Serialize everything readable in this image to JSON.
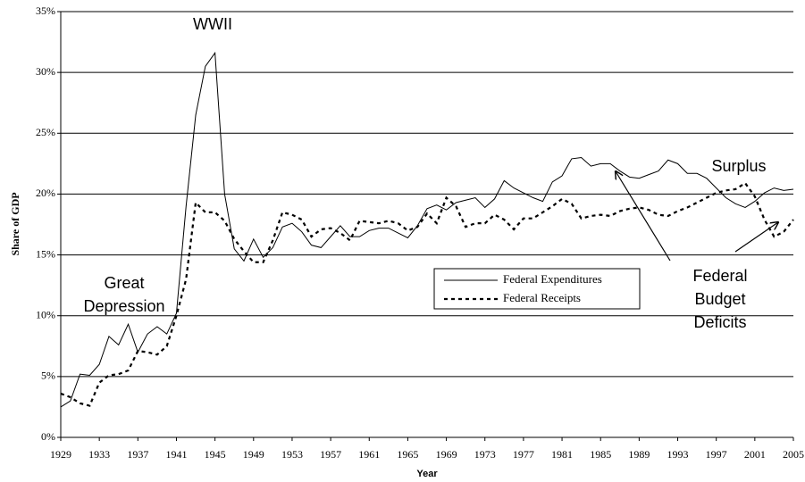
{
  "chart_data": {
    "type": "line",
    "x": [
      1929,
      1930,
      1931,
      1932,
      1933,
      1934,
      1935,
      1936,
      1937,
      1938,
      1939,
      1940,
      1941,
      1942,
      1943,
      1944,
      1945,
      1946,
      1947,
      1948,
      1949,
      1950,
      1951,
      1952,
      1953,
      1954,
      1955,
      1956,
      1957,
      1958,
      1959,
      1960,
      1961,
      1962,
      1963,
      1964,
      1965,
      1966,
      1967,
      1968,
      1969,
      1970,
      1971,
      1972,
      1973,
      1974,
      1975,
      1976,
      1977,
      1978,
      1979,
      1980,
      1981,
      1982,
      1983,
      1984,
      1985,
      1986,
      1987,
      1988,
      1989,
      1990,
      1991,
      1992,
      1993,
      1994,
      1995,
      1996,
      1997,
      1998,
      1999,
      2000,
      2001,
      2002,
      2003,
      2004,
      2005
    ],
    "series": [
      {
        "name": "Federal Expenditures",
        "color": "#000000",
        "dash": "solid",
        "values": [
          2.5,
          3.0,
          5.2,
          5.1,
          6.0,
          8.3,
          7.6,
          9.3,
          7.0,
          8.5,
          9.1,
          8.5,
          10.2,
          19.0,
          26.5,
          30.5,
          31.6,
          20.0,
          15.5,
          14.5,
          16.3,
          14.8,
          15.6,
          17.3,
          17.6,
          16.9,
          15.8,
          15.6,
          16.5,
          17.4,
          16.5,
          16.5,
          17.0,
          17.2,
          17.2,
          16.8,
          16.4,
          17.4,
          18.8,
          19.1,
          18.7,
          19.3,
          19.5,
          19.7,
          18.9,
          19.6,
          21.1,
          20.5,
          20.1,
          19.7,
          19.4,
          21.0,
          21.5,
          22.9,
          23.0,
          22.3,
          22.5,
          22.5,
          21.9,
          21.4,
          21.3,
          21.6,
          21.9,
          22.8,
          22.5,
          21.7,
          21.7,
          21.3,
          20.5,
          19.7,
          19.2,
          18.9,
          19.4,
          20.1,
          20.5,
          20.3,
          20.4
        ]
      },
      {
        "name": "Federal Receipts",
        "color": "#000000",
        "dash": "dashed",
        "values": [
          3.6,
          3.3,
          2.8,
          2.6,
          4.5,
          5.1,
          5.2,
          5.5,
          7.1,
          7.0,
          6.8,
          7.5,
          10.0,
          13.0,
          19.3,
          18.5,
          18.5,
          17.8,
          16.3,
          15.3,
          14.4,
          14.4,
          16.2,
          18.5,
          18.3,
          17.9,
          16.5,
          17.1,
          17.2,
          16.8,
          16.2,
          17.8,
          17.7,
          17.6,
          17.8,
          17.6,
          17.0,
          17.3,
          18.4,
          17.6,
          19.7,
          19.0,
          17.3,
          17.6,
          17.6,
          18.3,
          17.9,
          17.1,
          18.0,
          18.0,
          18.5,
          19.0,
          19.6,
          19.2,
          18.0,
          18.2,
          18.3,
          18.2,
          18.6,
          18.8,
          18.9,
          18.7,
          18.3,
          18.2,
          18.6,
          18.9,
          19.3,
          19.7,
          20.1,
          20.3,
          20.4,
          20.9,
          19.8,
          17.9,
          16.5,
          16.9,
          17.9
        ]
      }
    ],
    "xlabel": "Year",
    "ylabel": "Share of GDP",
    "xlim": [
      1929,
      2005
    ],
    "xticks": [
      1929,
      1933,
      1937,
      1941,
      1945,
      1949,
      1953,
      1957,
      1961,
      1965,
      1969,
      1973,
      1977,
      1981,
      1985,
      1989,
      1993,
      1997,
      2001,
      2005
    ],
    "ylim": [
      0,
      35
    ],
    "yticks": [
      {
        "value": 0,
        "label": "0%"
      },
      {
        "value": 5,
        "label": "5%"
      },
      {
        "value": 10,
        "label": "10%"
      },
      {
        "value": 15,
        "label": "15%"
      },
      {
        "value": 20,
        "label": "20%"
      },
      {
        "value": 25,
        "label": "25%"
      },
      {
        "value": 30,
        "label": "30%"
      },
      {
        "value": 35,
        "label": "35%"
      }
    ],
    "grid": true,
    "annotations": [
      [
        "WWII"
      ],
      [
        "Great",
        "Depression"
      ],
      [
        "Surplus"
      ],
      [
        "Federal",
        "Budget",
        "Deficits"
      ]
    ]
  }
}
